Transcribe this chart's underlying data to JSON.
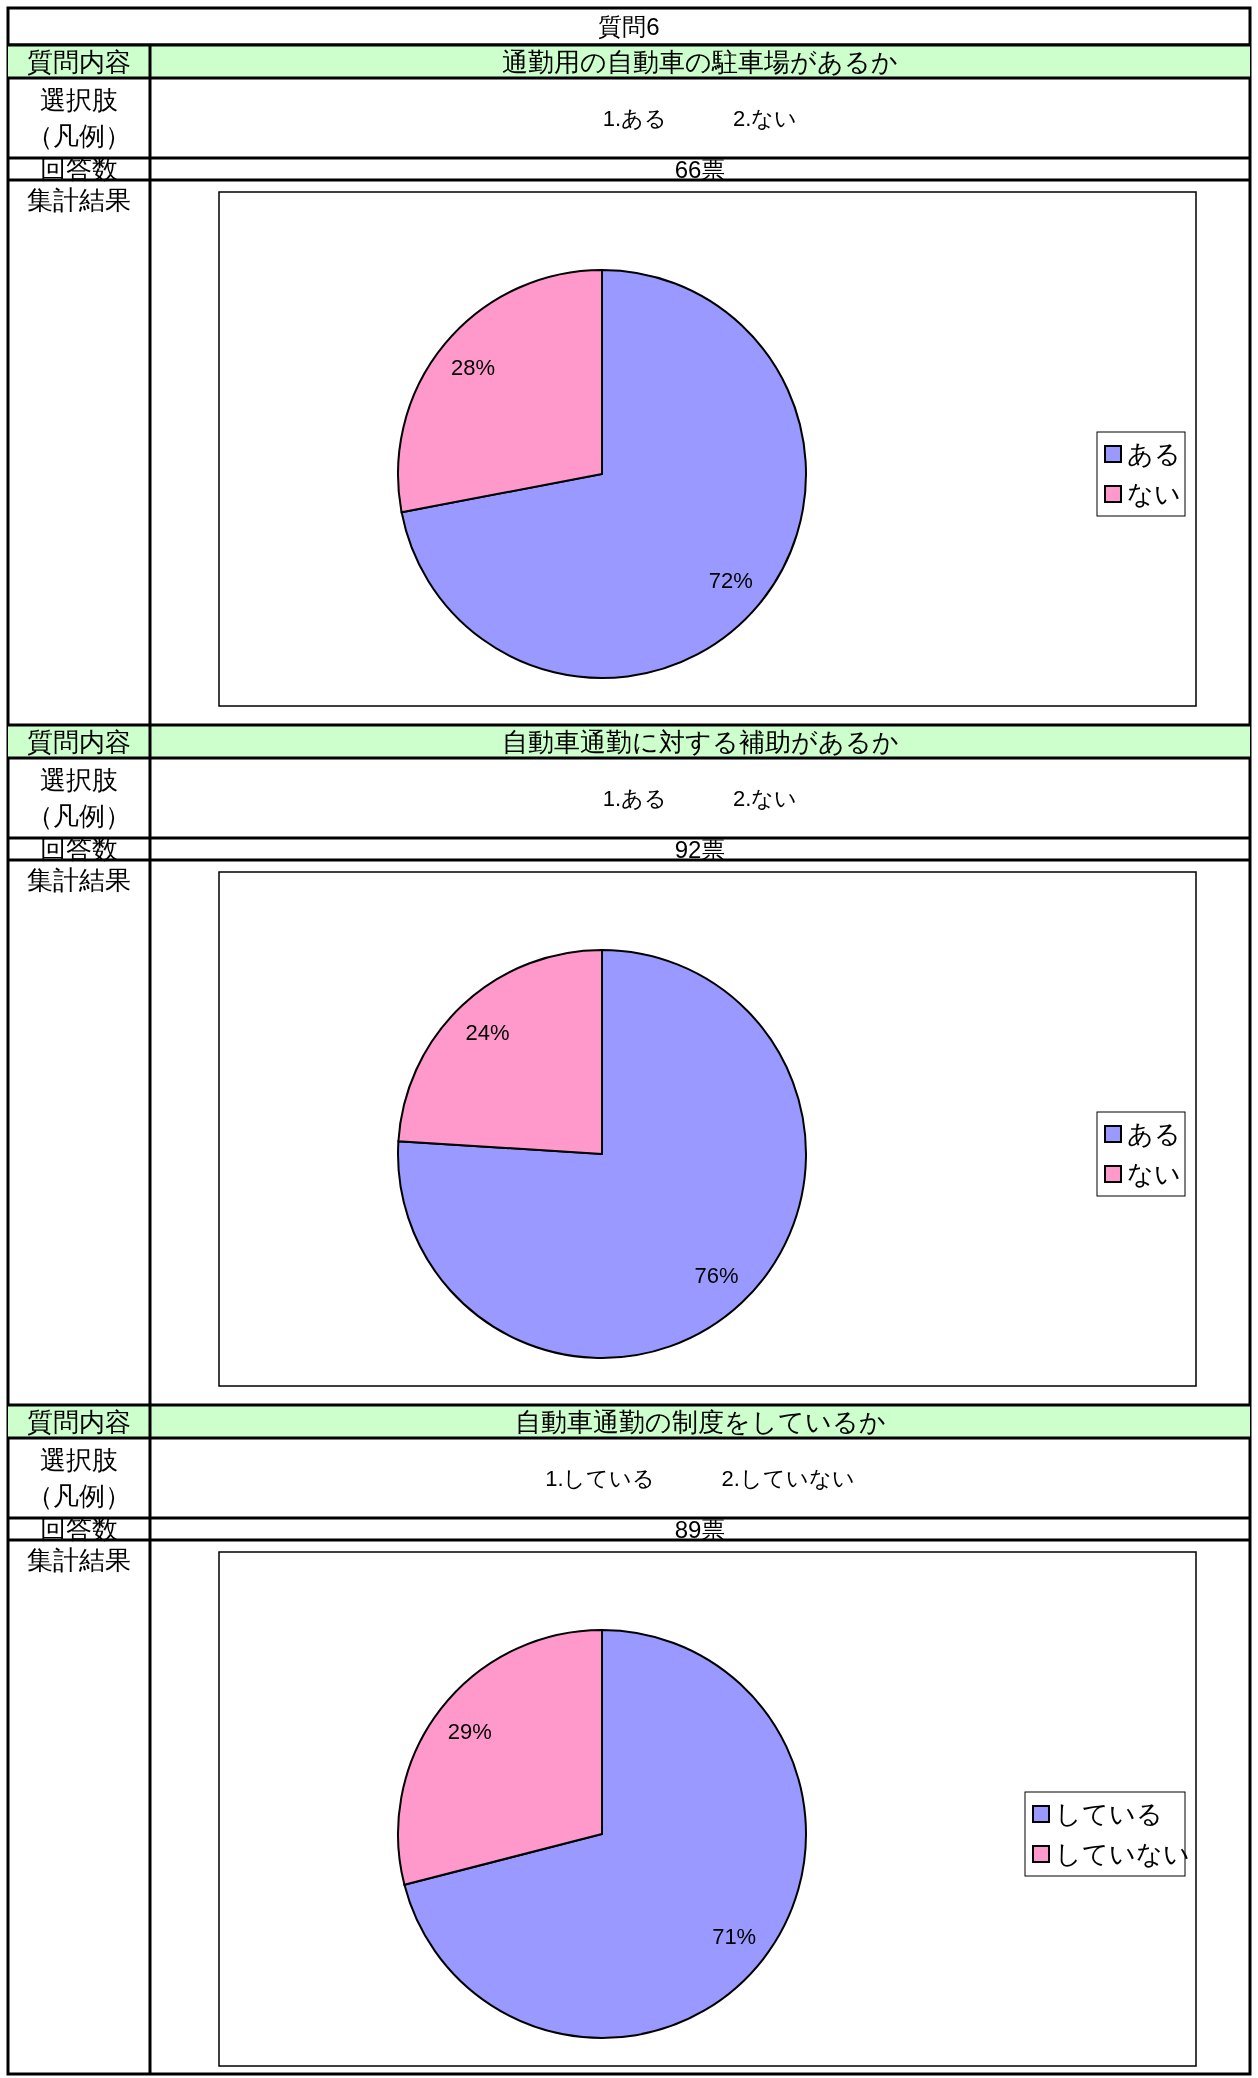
{
  "chart_data": [
    {
      "type": "pie",
      "title": "通勤用の自動車の駐車場があるか",
      "subtitle": "1.ある　　　2.ない",
      "categories": [
        "ある",
        "ない"
      ],
      "values": [
        72,
        28
      ],
      "value_labels": [
        "72%",
        "28%"
      ],
      "colors": [
        "#9999ff",
        "#ff99cc"
      ],
      "legend": "right",
      "annotations": [
        "質問内容",
        "選択肢",
        "（凡例）",
        "回答数",
        "66票",
        "集計結果",
        "質問6"
      ]
    },
    {
      "type": "pie",
      "title": "自動車通勤に対する補助があるか",
      "subtitle": "1.ある　　　2.ない",
      "categories": [
        "ある",
        "ない"
      ],
      "values": [
        76,
        24
      ],
      "value_labels": [
        "76%",
        "24%"
      ],
      "colors": [
        "#9999ff",
        "#ff99cc"
      ],
      "legend": "right",
      "annotations": [
        "質問内容",
        "選択肢",
        "（凡例）",
        "回答数",
        "92票",
        "集計結果"
      ]
    },
    {
      "type": "pie",
      "title": "自動車通勤の制度をしているか",
      "subtitle": "1.している　　　2.していない",
      "categories": [
        "している",
        "していない"
      ],
      "values": [
        71,
        29
      ],
      "value_labels": [
        "71%",
        "29%"
      ],
      "colors": [
        "#9999ff",
        "#ff99cc"
      ],
      "legend": "right",
      "annotations": [
        "質問内容",
        "選択肢",
        "（凡例）",
        "回答数",
        "89票",
        "集計結果"
      ]
    }
  ]
}
